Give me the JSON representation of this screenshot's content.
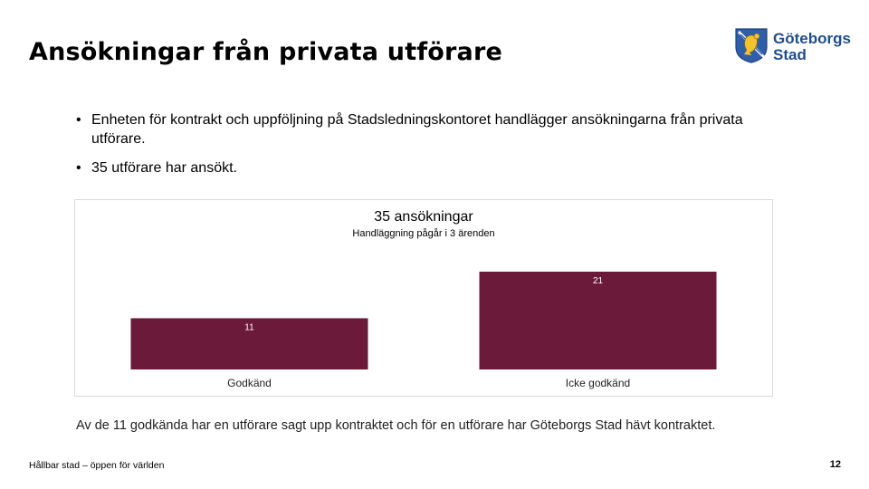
{
  "slide": {
    "title": "Ansökningar från privata utförare",
    "logo": {
      "name": "Göteborgs Stad",
      "line1": "Göteborgs",
      "line2": "Stad"
    },
    "bullets": [
      "Enheten för kontrakt och uppföljning på Stadsledningskontoret handlägger ansökningarna från privata utförare.",
      "35 utförare har ansökt."
    ],
    "footnote": "Av de 11 godkända har en utförare sagt upp kontraktet och för en utförare har Göteborgs Stad hävt kontraktet.",
    "footer_left": "Hållbar stad – öppen för världen",
    "page_number": "12"
  },
  "colors": {
    "bar": "#6b1a3a",
    "frame": "#d9d9d9"
  },
  "chart_data": {
    "type": "bar",
    "title": "35 ansökningar",
    "subtitle": "Handläggning pågår i 3 ärenden",
    "categories": [
      "Godkänd",
      "Icke godkänd"
    ],
    "values": [
      11,
      21
    ],
    "data_labels": [
      "11",
      "21"
    ],
    "ylim": [
      0,
      21
    ],
    "grid": false,
    "legend": "none"
  }
}
